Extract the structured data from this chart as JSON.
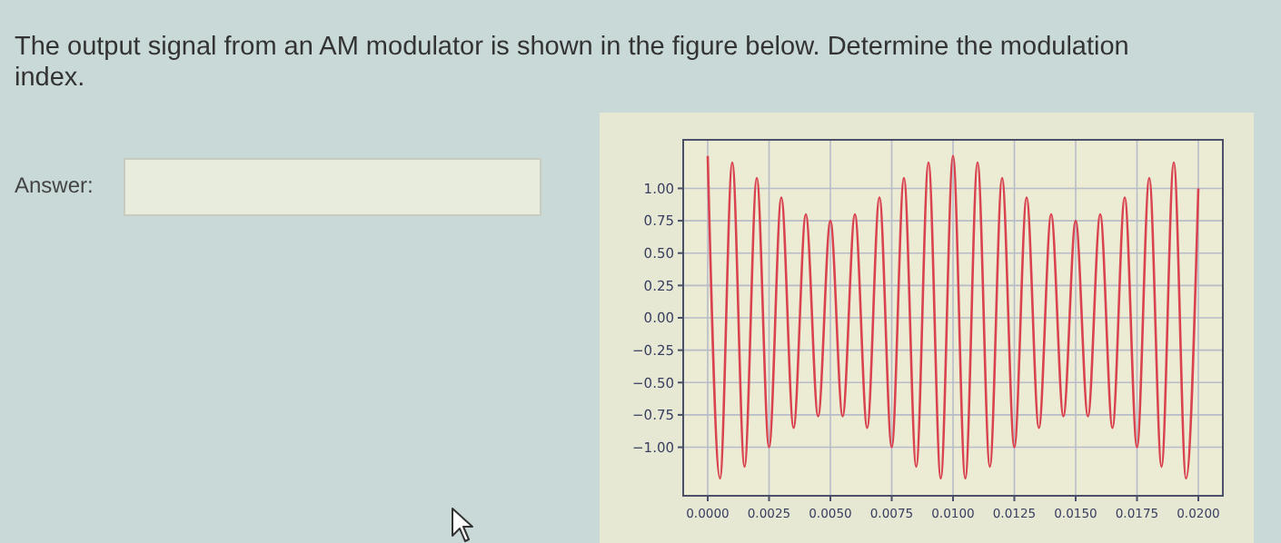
{
  "chart_data": {
    "type": "line",
    "title": "The output signal from an AM modulator is shown in the figure below. Determine the modulation index.",
    "annotations": [
      "Answer:"
    ],
    "x": [
      0,
      0.0005,
      0.001,
      0.0015,
      0.002,
      0.0025,
      0.003,
      0.0035,
      0.004,
      0.0045,
      0.005,
      0.0055,
      0.006,
      0.0065,
      0.007,
      0.0075,
      0.008,
      0.0085,
      0.009,
      0.0095,
      0.01,
      0.0105,
      0.011,
      0.0115,
      0.012,
      0.0125,
      0.013,
      0.0135,
      0.014,
      0.0145,
      0.015,
      0.0155,
      0.016,
      0.0165,
      0.017,
      0.0175,
      0.018,
      0.0185,
      0.019,
      0.0195,
      0.02
    ],
    "series": [
      {
        "color": "#d9434f",
        "values": [
          1.25,
          -1.24,
          1.2,
          -1.15,
          1.08,
          -1.0,
          0.93,
          -0.85,
          0.8,
          -0.76,
          0.75,
          -0.76,
          0.8,
          -0.85,
          0.93,
          -1.0,
          1.08,
          -1.15,
          1.2,
          -1.24,
          1.25,
          -1.24,
          1.2,
          -1.15,
          1.08,
          -1.0,
          0.93,
          -0.85,
          0.8,
          -0.76,
          0.75,
          -0.76,
          0.8,
          -0.85,
          0.93,
          -1.0,
          1.08,
          -1.15,
          1.2,
          -1.24,
          1.0
        ]
      }
    ],
    "xlim": [
      -0.001,
      0.021
    ],
    "ylim": [
      -1.375,
      1.375
    ],
    "xticks": [
      {
        "value": 0,
        "label": "0.0000"
      },
      {
        "value": 0.0025,
        "label": "0.0025"
      },
      {
        "value": 0.005,
        "label": "0.0050"
      },
      {
        "value": 0.0075,
        "label": "0.0075"
      },
      {
        "value": 0.01,
        "label": "0.0100"
      },
      {
        "value": 0.0125,
        "label": "0.0125"
      },
      {
        "value": 0.015,
        "label": "0.0150"
      },
      {
        "value": 0.0175,
        "label": "0.0175"
      },
      {
        "value": 0.02,
        "label": "0.0200"
      }
    ],
    "yticks": [
      {
        "value": -1,
        "label": "−1.00"
      },
      {
        "value": -0.75,
        "label": "−0.75"
      },
      {
        "value": -0.5,
        "label": "−0.50"
      },
      {
        "value": -0.25,
        "label": "−0.25"
      },
      {
        "value": 0,
        "label": "0.00"
      },
      {
        "value": 0.25,
        "label": "0.25"
      },
      {
        "value": 0.5,
        "label": "0.50"
      },
      {
        "value": 0.75,
        "label": "0.75"
      },
      {
        "value": 1,
        "label": "1.00"
      }
    ],
    "grid": true
  }
}
